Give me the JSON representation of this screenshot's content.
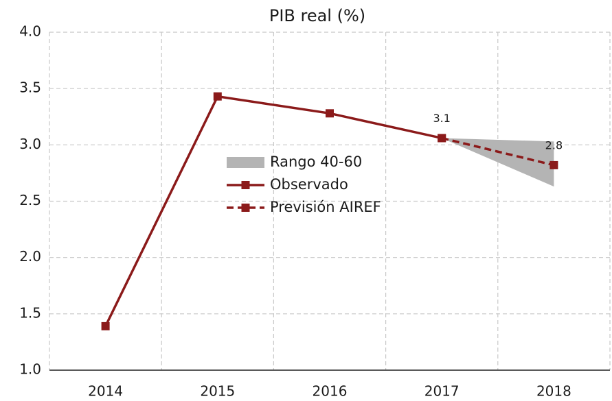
{
  "chart_data": {
    "type": "line",
    "title": "PIB real (%)",
    "categories": [
      "2014",
      "2015",
      "2016",
      "2017",
      "2018"
    ],
    "ylim": [
      1.0,
      4.0
    ],
    "yticks": [
      {
        "value": 1.0,
        "label": "1.0"
      },
      1.5,
      {
        "value": 2.0,
        "label": "2.0"
      },
      2.5,
      {
        "value": 3.0,
        "label": "3.0"
      },
      3.5,
      {
        "value": 4.0,
        "label": "4.0"
      }
    ],
    "grid": true,
    "band": {
      "name": "Rango 40-60",
      "color": "#b4b4b4",
      "lower": [
        null,
        null,
        null,
        3.06,
        2.63
      ],
      "upper": [
        null,
        null,
        null,
        3.06,
        3.03
      ]
    },
    "series": [
      {
        "name": "Observado",
        "color": "#8b1a1a",
        "dashed": false,
        "values": [
          1.39,
          3.43,
          3.28,
          3.06,
          null
        ]
      },
      {
        "name": "Previsión AIREF",
        "color": "#8b1a1a",
        "dashed": true,
        "values": [
          null,
          null,
          null,
          3.06,
          2.82
        ],
        "value_labels": [
          null,
          null,
          null,
          "3.1",
          "2.8"
        ]
      }
    ]
  }
}
